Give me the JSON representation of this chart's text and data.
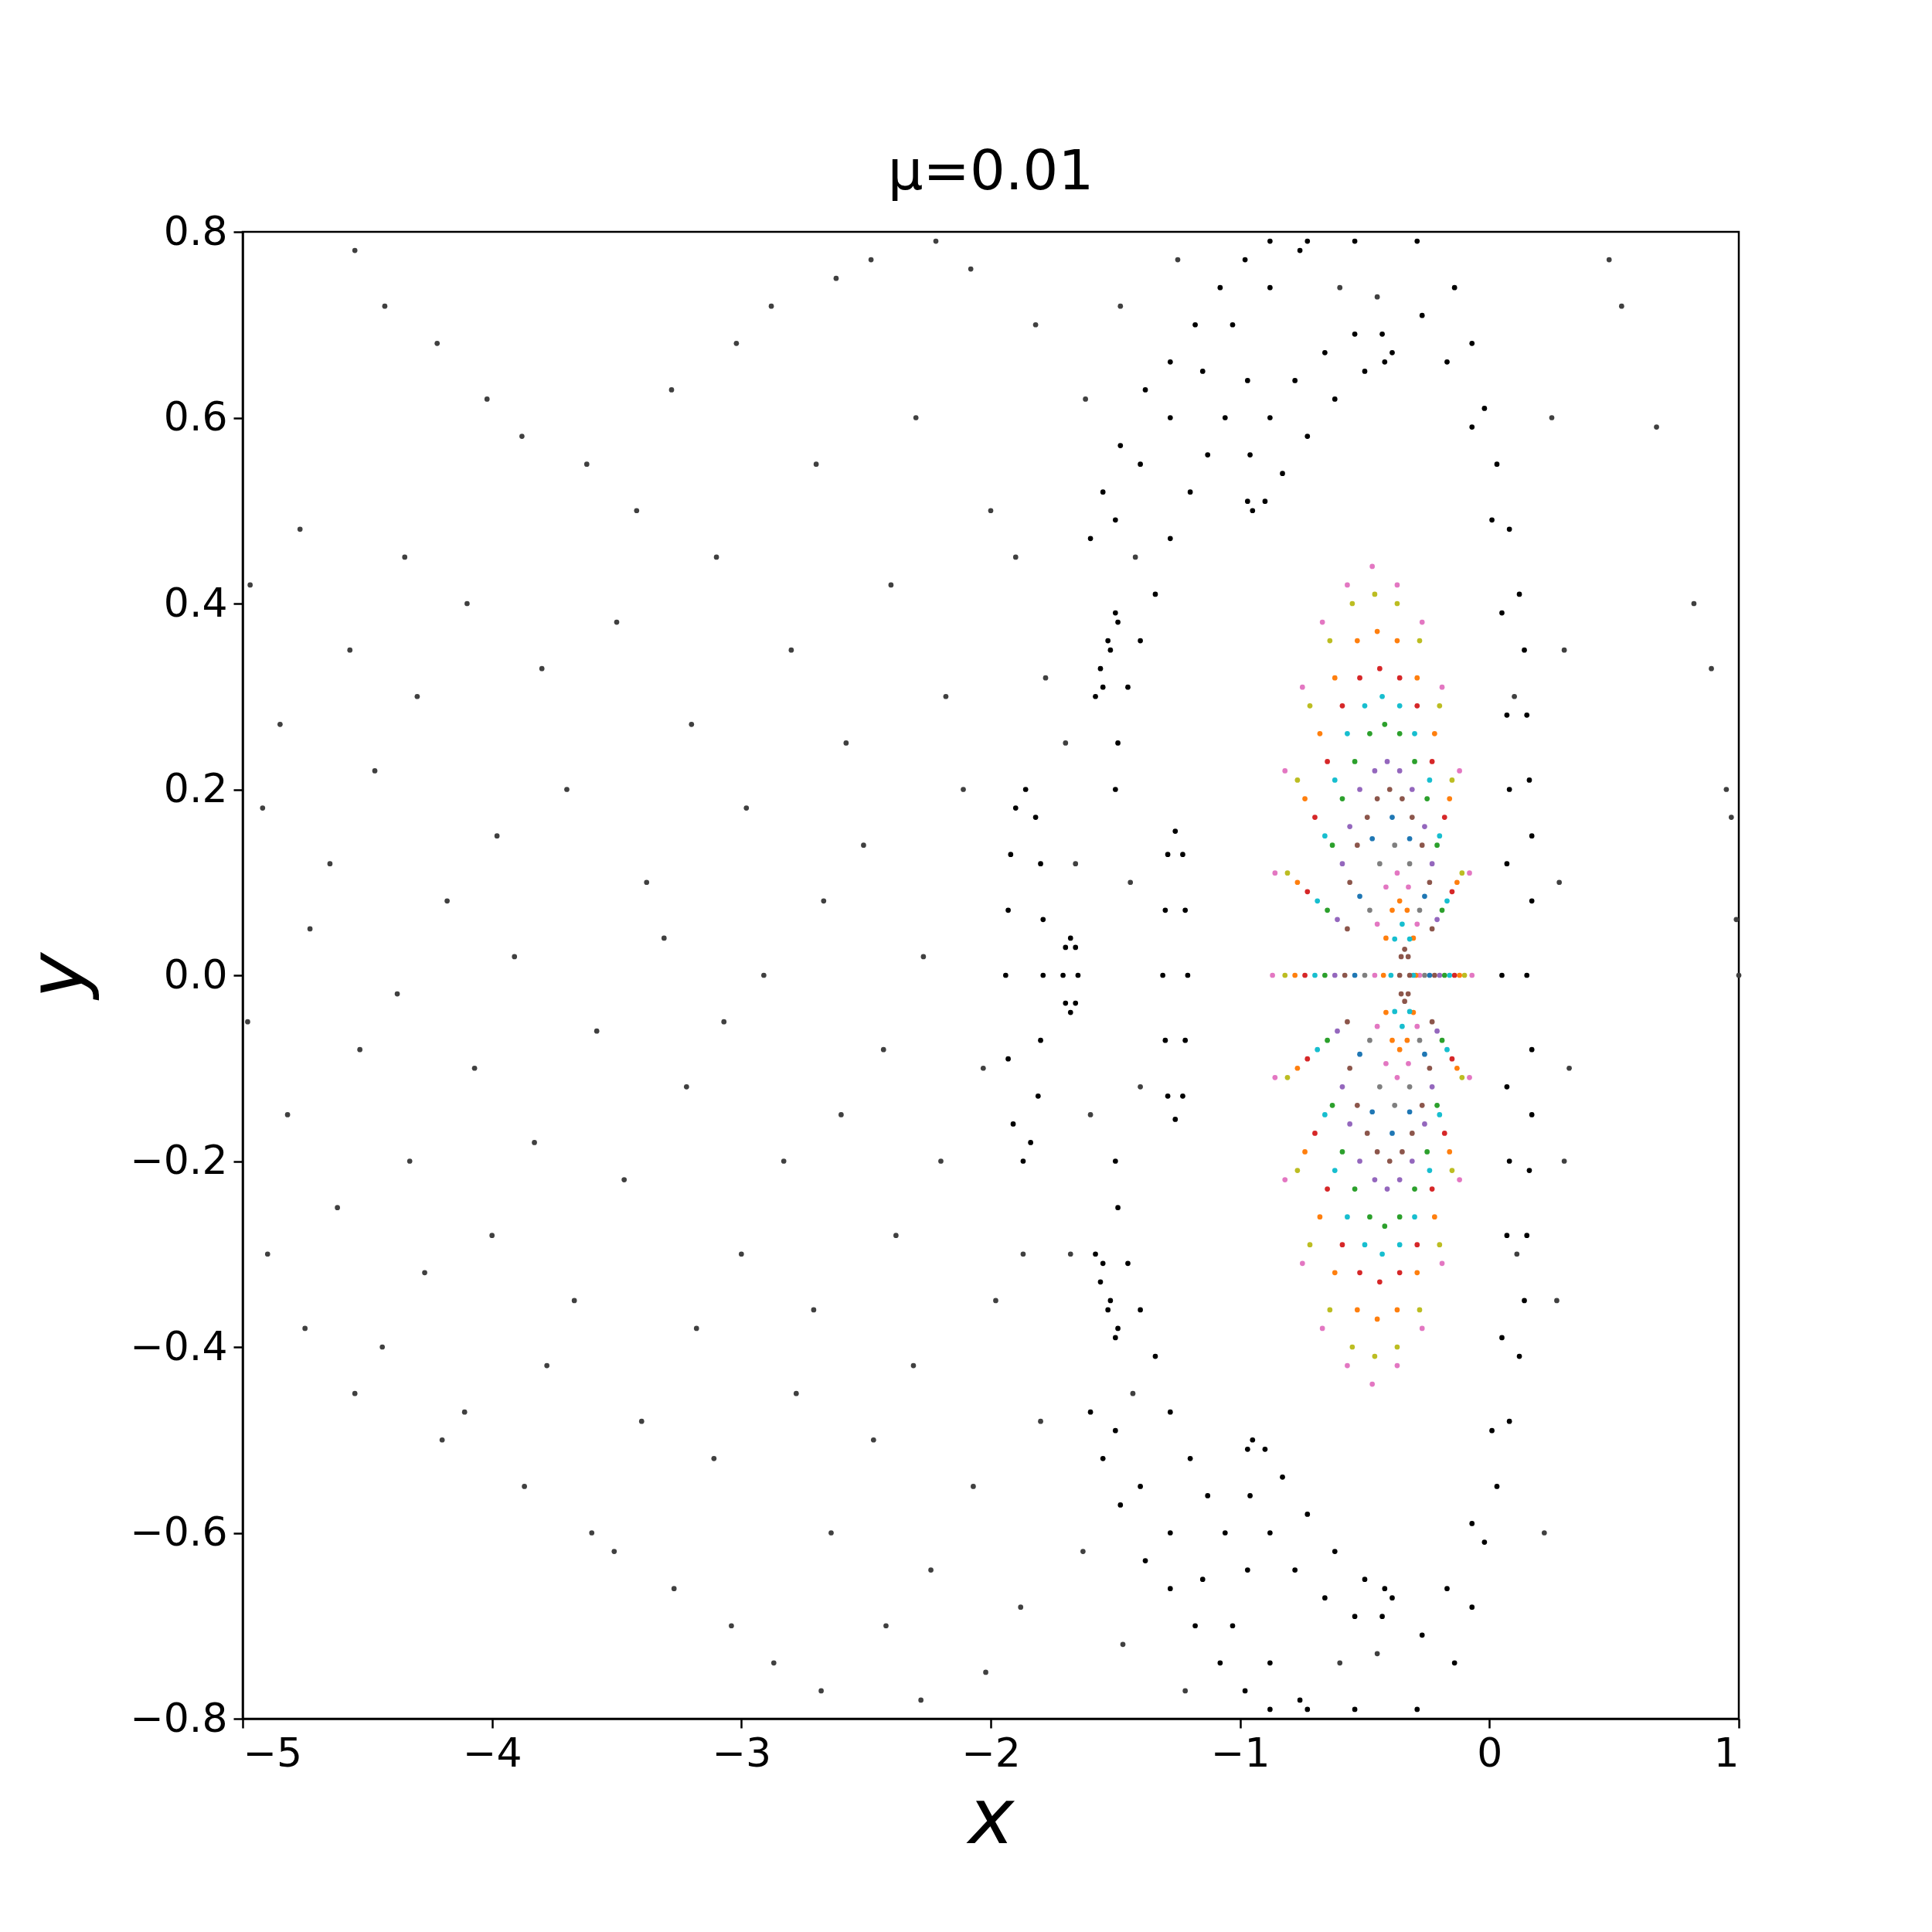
{
  "chart_data": {
    "type": "scatter",
    "title": "μ=0.01",
    "xlabel": "x",
    "ylabel": "y",
    "marker": "circle",
    "xlim": [
      -5,
      1
    ],
    "ylim": [
      -0.8,
      0.8
    ],
    "xticks": [
      {
        "value": -5,
        "label": "−5"
      },
      {
        "value": -4,
        "label": "−4"
      },
      {
        "value": -3,
        "label": "−3"
      },
      {
        "value": -2,
        "label": "−2"
      },
      {
        "value": -1,
        "label": "−1"
      },
      0,
      1
    ],
    "yticks": [
      {
        "value": -0.8,
        "label": "−0.8"
      },
      {
        "value": -0.6,
        "label": "−0.6"
      },
      {
        "value": -0.4,
        "label": "−0.4"
      },
      {
        "value": -0.2,
        "label": "−0.2"
      },
      {
        "value": 0,
        "label": "0.0"
      },
      0.2,
      0.4,
      0.6,
      0.8
    ],
    "series": [
      {
        "color": "#404040",
        "x": [
          -4.97,
          -4.92,
          -4.98,
          -4.9,
          -4.77,
          -4.85,
          -4.73,
          -4.82,
          -4.75,
          -4.57,
          -4.65,
          -4.53,
          -4.62,
          -4.55,
          -4.55,
          -4.43,
          -4.35,
          -4.47,
          -4.38,
          -4.33,
          -4.44,
          -4.22,
          -4.3,
          -4.18,
          -4.27,
          -4.2,
          -4.02,
          -4.1,
          -3.98,
          -4.07,
          -4.0,
          -4.11,
          -3.88,
          -3.8,
          -3.91,
          -3.83,
          -3.78,
          -3.87,
          -3.62,
          -3.7,
          -3.58,
          -3.67,
          -3.6,
          -3.42,
          -3.5,
          -3.38,
          -3.47,
          -3.4,
          -3.51,
          -3.28,
          -3.2,
          -3.31,
          -3.22,
          -3.18,
          -3.27,
          -3.02,
          -3.1,
          -2.98,
          -3.07,
          -3.0,
          -3.11,
          -3.04,
          -2.88,
          -2.8,
          -2.91,
          -2.83,
          -2.78,
          -2.87,
          -2.62,
          -2.7,
          -2.58,
          -2.67,
          -2.6,
          -2.71,
          -2.64,
          -2.68,
          -2.48,
          -2.4,
          -2.51,
          -2.43,
          -2.38,
          -2.47,
          -2.42,
          -2.22,
          -2.3,
          -2.18,
          -2.27,
          -2.2,
          -2.31,
          -2.24,
          -2.28,
          -2.08,
          -2.0,
          -2.11,
          -2.03,
          -1.98,
          -2.07,
          -2.02,
          -1.82,
          -1.9,
          -1.78,
          -1.87,
          -1.8,
          -1.88,
          -1.62,
          -1.7,
          -1.66,
          -1.6,
          -1.68,
          -1.63,
          -1.48,
          -1.42,
          -1.44,
          -1.4,
          -1.43,
          -1.47,
          -1.25,
          -1.22,
          -0.6,
          -0.6,
          -0.45,
          -0.45,
          0.1,
          0.11,
          0.25,
          0.3,
          0.28,
          0.32,
          0.3,
          0.27,
          0.22,
          0.48,
          0.53,
          0.67,
          0.82,
          0.89,
          0.95,
          0.97,
          0.99,
          1.0
        ],
        "values": [
          0.42,
          0.18,
          -0.05,
          -0.3,
          0.48,
          0.27,
          0.05,
          -0.15,
          -0.38,
          0.35,
          0.12,
          -0.08,
          -0.25,
          -0.45,
          0.78,
          0.72,
          0.45,
          0.22,
          -0.02,
          -0.2,
          -0.4,
          0.68,
          0.3,
          0.08,
          -0.32,
          -0.5,
          0.62,
          0.4,
          0.15,
          -0.1,
          -0.28,
          -0.47,
          0.58,
          0.33,
          0.02,
          -0.18,
          -0.42,
          -0.55,
          0.55,
          0.2,
          -0.06,
          -0.35,
          -0.6,
          0.5,
          0.38,
          0.1,
          -0.22,
          -0.48,
          -0.62,
          0.63,
          0.27,
          0.04,
          -0.12,
          -0.38,
          -0.66,
          0.68,
          0.45,
          0.18,
          -0.05,
          -0.3,
          -0.52,
          -0.7,
          0.72,
          0.35,
          0.0,
          -0.2,
          -0.45,
          -0.74,
          0.75,
          0.55,
          0.25,
          0.08,
          -0.15,
          -0.36,
          -0.6,
          -0.77,
          0.77,
          0.42,
          0.14,
          -0.08,
          -0.28,
          -0.5,
          -0.7,
          0.79,
          0.6,
          0.3,
          0.02,
          -0.2,
          -0.42,
          -0.64,
          -0.78,
          0.76,
          0.5,
          0.2,
          -0.1,
          -0.35,
          -0.55,
          -0.75,
          0.7,
          0.45,
          0.32,
          -0.3,
          -0.48,
          -0.68,
          0.62,
          0.25,
          0.12,
          -0.15,
          -0.3,
          -0.62,
          0.72,
          0.45,
          0.1,
          -0.12,
          -0.45,
          -0.72,
          0.77,
          -0.77,
          0.74,
          -0.74,
          0.73,
          -0.73,
          0.3,
          -0.3,
          0.6,
          0.35,
          0.1,
          -0.1,
          -0.2,
          -0.35,
          -0.6,
          0.77,
          0.72,
          0.59,
          0.4,
          0.33,
          0.2,
          0.17,
          0.06,
          0.0
        ]
      },
      {
        "color": "#000000",
        "x": [
          -1.6,
          -1.55,
          -1.48,
          -1.38,
          -1.28,
          -1.18,
          -1.08,
          -0.98,
          -0.88,
          -1.5,
          -1.4,
          -1.28,
          -1.15,
          -1.03,
          -0.88,
          -0.76
        ],
        "values": [
          0.47,
          0.52,
          0.57,
          0.63,
          0.66,
          0.7,
          0.74,
          0.77,
          0.79,
          0.49,
          0.55,
          0.6,
          0.65,
          0.7,
          0.74,
          0.78
        ]
      },
      {
        "color": "#000000",
        "x": [
          -0.73,
          -0.54,
          -0.29,
          -0.14,
          -0.07,
          -0.02,
          0.03,
          0.08,
          0.12,
          0.14,
          0.15,
          0.16,
          0.17,
          0.17,
          0.15,
          0.17,
          0.17,
          0.16,
          0.15,
          0.14,
          0.12,
          0.08,
          0.03,
          -0.02,
          -0.07,
          -0.14,
          -0.29,
          -0.54,
          -0.73
        ],
        "values": [
          0.79,
          0.79,
          0.79,
          0.74,
          0.68,
          0.61,
          0.55,
          0.48,
          0.41,
          0.35,
          0.28,
          0.21,
          0.15,
          0.08,
          0.0,
          -0.08,
          -0.15,
          -0.21,
          -0.28,
          -0.35,
          -0.41,
          -0.48,
          -0.55,
          -0.61,
          -0.68,
          -0.74,
          -0.79,
          -0.79,
          -0.79
        ]
      },
      {
        "color": "#000000",
        "x": [
          -1.6,
          -1.55,
          -1.48,
          -1.38,
          -1.28,
          -1.18,
          -1.08,
          -0.98,
          -0.88,
          -1.5,
          -1.4,
          -1.28,
          -1.15,
          -1.03,
          -0.88,
          -0.76
        ],
        "values": [
          -0.47,
          -0.52,
          -0.57,
          -0.63,
          -0.66,
          -0.7,
          -0.74,
          -0.77,
          -0.79,
          -0.49,
          -0.55,
          -0.6,
          -0.65,
          -0.7,
          -0.74,
          -0.78
        ]
      },
      {
        "color": "#000000",
        "x": [
          -0.27,
          -0.17,
          -0.07,
          0.01,
          0.05,
          0.07,
          0.08,
          0.07,
          0.05,
          0.07,
          0.08,
          0.07,
          0.05,
          0.01,
          -0.07,
          -0.17,
          -0.27
        ],
        "values": [
          0.71,
          0.66,
          0.59,
          0.49,
          0.39,
          0.28,
          0.2,
          0.12,
          0.0,
          -0.12,
          -0.2,
          -0.28,
          -0.39,
          -0.49,
          -0.59,
          -0.66,
          -0.71
        ]
      },
      {
        "color": "#000000",
        "x": [
          -0.97,
          -1.06,
          -1.13,
          -1.2,
          -1.28,
          -1.34,
          -1.4,
          -1.45,
          -1.49,
          -1.5,
          -1.5,
          -1.49,
          -1.45,
          -1.4,
          -1.34,
          -1.28,
          -1.2,
          -1.13,
          -1.06,
          -0.97
        ],
        "values": [
          0.64,
          0.6,
          0.56,
          0.52,
          0.47,
          0.41,
          0.36,
          0.31,
          0.25,
          0.2,
          -0.2,
          -0.25,
          -0.31,
          -0.36,
          -0.41,
          -0.47,
          -0.52,
          -0.56,
          -0.6,
          -0.64
        ]
      },
      {
        "color": "#000000",
        "x": [
          -0.97,
          -0.96,
          -0.88,
          -0.78,
          -0.66,
          -0.54,
          -0.43,
          -0.39,
          -0.42,
          -0.5,
          -0.62,
          -0.73,
          -0.83,
          -0.9,
          -0.95
        ],
        "values": [
          0.51,
          0.56,
          0.6,
          0.64,
          0.67,
          0.69,
          0.69,
          0.67,
          0.66,
          0.65,
          0.62,
          0.58,
          0.54,
          0.51,
          0.5
        ]
      },
      {
        "color": "#000000",
        "x": [
          -0.97,
          -0.96,
          -0.88,
          -0.78,
          -0.66,
          -0.54,
          -0.43,
          -0.39,
          -0.42,
          -0.5,
          -0.62,
          -0.73,
          -0.83,
          -0.9,
          -0.95
        ],
        "values": [
          -0.51,
          -0.56,
          -0.6,
          -0.64,
          -0.67,
          -0.69,
          -0.69,
          -0.67,
          -0.66,
          -0.65,
          -0.62,
          -0.58,
          -0.54,
          -0.51,
          -0.5
        ]
      },
      {
        "color": "#000000",
        "x": [
          -1.86,
          -1.82,
          -1.8,
          -1.79,
          -1.79,
          -1.8,
          -1.81,
          -1.84,
          -1.87,
          -1.91,
          -1.93,
          -1.94,
          -1.93,
          -1.92,
          -1.9
        ],
        "values": [
          0.2,
          0.17,
          0.12,
          0.06,
          0.0,
          -0.07,
          -0.13,
          -0.18,
          -0.2,
          -0.16,
          -0.09,
          0.0,
          0.07,
          0.13,
          0.18
        ]
      },
      {
        "color": "#000000",
        "x": [
          -1.68,
          -1.66,
          -1.65,
          -1.66,
          -1.68,
          -1.7,
          -1.71,
          -1.7
        ],
        "values": [
          0.04,
          0.03,
          0.0,
          -0.03,
          -0.04,
          -0.03,
          0.0,
          0.03
        ]
      },
      {
        "color": "#000000",
        "x": [
          -1.26,
          -1.23,
          -1.22,
          -1.21,
          -1.22,
          -1.23,
          -1.26,
          -1.29,
          -1.3,
          -1.31,
          -1.3,
          -1.29
        ],
        "values": [
          0.155,
          0.13,
          0.07,
          0.0,
          -0.07,
          -0.13,
          -0.155,
          -0.13,
          -0.07,
          0.0,
          0.07,
          0.13
        ]
      },
      {
        "color": "#000000",
        "x": [
          -1.5,
          -1.53,
          -1.56,
          -1.58,
          -1.55,
          -1.52,
          -1.49,
          -1.5,
          -1.53,
          -1.56,
          -1.58,
          -1.55,
          -1.52,
          -1.49
        ],
        "values": [
          0.39,
          0.36,
          0.33,
          0.3,
          0.31,
          0.35,
          0.38,
          -0.39,
          -0.36,
          -0.33,
          -0.3,
          -0.31,
          -0.35,
          -0.38
        ]
      },
      {
        "color": "#e377c2",
        "x": [
          -0.07,
          -0.08,
          -0.12,
          -0.19,
          -0.27,
          -0.37,
          -0.47,
          -0.57,
          -0.67,
          -0.75,
          -0.82,
          -0.86,
          -0.87,
          -0.86,
          -0.82,
          -0.75,
          -0.67,
          -0.57,
          -0.47,
          -0.37,
          -0.27,
          -0.19,
          -0.12,
          -0.08
        ],
        "values": [
          0,
          0.11,
          0.22,
          0.31,
          0.38,
          0.42,
          0.44,
          0.42,
          0.38,
          0.31,
          0.22,
          0.11,
          0,
          -0.11,
          -0.22,
          -0.31,
          -0.38,
          -0.42,
          -0.44,
          -0.42,
          -0.38,
          -0.31,
          -0.22,
          -0.11
        ]
      },
      {
        "color": "#bcbd22",
        "x": [
          -0.1,
          -0.11,
          -0.15,
          -0.2,
          -0.28,
          -0.37,
          -0.46,
          -0.55,
          -0.64,
          -0.72,
          -0.77,
          -0.81,
          -0.82,
          -0.81,
          -0.77,
          -0.72,
          -0.64,
          -0.55,
          -0.46,
          -0.37,
          -0.28,
          -0.2,
          -0.15,
          -0.11
        ],
        "values": [
          0,
          0.11,
          0.21,
          0.29,
          0.36,
          0.4,
          0.41,
          0.4,
          0.36,
          0.29,
          0.21,
          0.11,
          0,
          -0.11,
          -0.21,
          -0.29,
          -0.36,
          -0.4,
          -0.41,
          -0.4,
          -0.36,
          -0.29,
          -0.21,
          -0.11
        ]
      },
      {
        "color": "#ff7f0e",
        "x": [
          -0.12,
          -0.13,
          -0.16,
          -0.22,
          -0.29,
          -0.37,
          -0.45,
          -0.53,
          -0.62,
          -0.68,
          -0.74,
          -0.77,
          -0.78,
          -0.77,
          -0.74,
          -0.68,
          -0.62,
          -0.53,
          -0.45,
          -0.37,
          -0.29,
          -0.22,
          -0.16,
          -0.13
        ],
        "values": [
          0,
          0.1,
          0.19,
          0.26,
          0.32,
          0.36,
          0.37,
          0.36,
          0.32,
          0.26,
          0.19,
          0.1,
          0,
          -0.1,
          -0.19,
          -0.26,
          -0.32,
          -0.36,
          -0.37,
          -0.36,
          -0.32,
          -0.26,
          -0.19,
          -0.1
        ]
      },
      {
        "color": "#d62728",
        "x": [
          -0.14,
          -0.15,
          -0.18,
          -0.23,
          -0.29,
          -0.36,
          -0.44,
          -0.52,
          -0.59,
          -0.65,
          -0.7,
          -0.73,
          -0.74,
          -0.73,
          -0.7,
          -0.65,
          -0.59,
          -0.52,
          -0.44,
          -0.36,
          -0.29,
          -0.23,
          -0.18,
          -0.15
        ],
        "values": [
          0,
          0.09,
          0.17,
          0.23,
          0.29,
          0.32,
          0.33,
          0.32,
          0.29,
          0.23,
          0.17,
          0.09,
          0,
          -0.09,
          -0.17,
          -0.23,
          -0.29,
          -0.32,
          -0.33,
          -0.32,
          -0.29,
          -0.23,
          -0.17,
          -0.09
        ]
      },
      {
        "color": "#17becf",
        "x": [
          -0.16,
          -0.17,
          -0.2,
          -0.24,
          -0.3,
          -0.36,
          -0.43,
          -0.5,
          -0.57,
          -0.62,
          -0.66,
          -0.69,
          -0.7,
          -0.69,
          -0.66,
          -0.62,
          -0.57,
          -0.5,
          -0.43,
          -0.36,
          -0.3,
          -0.24,
          -0.2,
          -0.17
        ],
        "values": [
          0,
          0.08,
          0.15,
          0.21,
          0.26,
          0.29,
          0.3,
          0.29,
          0.26,
          0.21,
          0.15,
          0.08,
          0,
          -0.08,
          -0.15,
          -0.21,
          -0.26,
          -0.29,
          -0.3,
          -0.29,
          -0.26,
          -0.21,
          -0.15,
          -0.08
        ]
      },
      {
        "color": "#2ca02c",
        "x": [
          -0.18,
          -0.19,
          -0.21,
          -0.25,
          -0.3,
          -0.36,
          -0.42,
          -0.48,
          -0.54,
          -0.59,
          -0.63,
          -0.65,
          -0.66,
          -0.65,
          -0.63,
          -0.59,
          -0.54,
          -0.48,
          -0.42,
          -0.36,
          -0.3,
          -0.25,
          -0.21,
          -0.19
        ],
        "values": [
          0,
          0.07,
          0.14,
          0.19,
          0.23,
          0.26,
          0.27,
          0.26,
          0.23,
          0.19,
          0.14,
          0.07,
          0,
          -0.07,
          -0.14,
          -0.19,
          -0.23,
          -0.26,
          -0.27,
          -0.26,
          -0.23,
          -0.19,
          -0.14,
          -0.07
        ]
      },
      {
        "color": "#9467bd",
        "x": [
          -0.2,
          -0.21,
          -0.23,
          -0.26,
          -0.31,
          -0.36,
          -0.41,
          -0.46,
          -0.52,
          -0.56,
          -0.59,
          -0.61,
          -0.62,
          -0.61,
          -0.59,
          -0.56,
          -0.52,
          -0.46,
          -0.41,
          -0.36,
          -0.31,
          -0.26,
          -0.23,
          -0.21
        ],
        "values": [
          0,
          0.06,
          0.12,
          0.16,
          0.2,
          0.22,
          0.23,
          0.22,
          0.2,
          0.16,
          0.12,
          0.06,
          0,
          -0.06,
          -0.12,
          -0.16,
          -0.2,
          -0.22,
          -0.23,
          -0.22,
          -0.2,
          -0.16,
          -0.12,
          -0.06
        ]
      },
      {
        "color": "#8c564b",
        "x": [
          -0.22,
          -0.23,
          -0.24,
          -0.27,
          -0.31,
          -0.35,
          -0.4,
          -0.45,
          -0.49,
          -0.53,
          -0.56,
          -0.57,
          -0.58,
          -0.57,
          -0.56,
          -0.53,
          -0.49,
          -0.45,
          -0.4,
          -0.35,
          -0.31,
          -0.27,
          -0.24,
          -0.23
        ],
        "values": [
          0,
          0.05,
          0.1,
          0.14,
          0.17,
          0.19,
          0.2,
          0.19,
          0.17,
          0.14,
          0.1,
          0.05,
          0,
          -0.05,
          -0.1,
          -0.14,
          -0.17,
          -0.19,
          -0.2,
          -0.19,
          -0.17,
          -0.14,
          -0.1,
          -0.05
        ]
      },
      {
        "color": "#1f77b4",
        "x": [
          -0.24,
          -0.26,
          -0.32,
          -0.39,
          -0.47,
          -0.52,
          -0.54,
          -0.52,
          -0.47,
          -0.39,
          -0.32,
          -0.26
        ],
        "values": [
          0,
          0.085,
          0.147,
          0.17,
          0.147,
          0.085,
          0,
          -0.085,
          -0.147,
          -0.17,
          -0.147,
          -0.085
        ]
      },
      {
        "color": "#7f7f7f",
        "x": [
          -0.26,
          -0.28,
          -0.32,
          -0.38,
          -0.44,
          -0.48,
          -0.5,
          -0.48,
          -0.44,
          -0.38,
          -0.32,
          -0.28
        ],
        "values": [
          0,
          0.07,
          0.12,
          0.14,
          0.12,
          0.07,
          0,
          -0.07,
          -0.12,
          -0.14,
          -0.12,
          -0.07
        ]
      },
      {
        "color": "#e377c2",
        "x": [
          -0.28,
          -0.29,
          -0.325,
          -0.37,
          -0.415,
          -0.45,
          -0.46,
          -0.45,
          -0.415,
          -0.37,
          -0.325,
          -0.29
        ],
        "values": [
          0,
          0.055,
          0.095,
          0.11,
          0.095,
          0.055,
          0,
          -0.055,
          -0.095,
          -0.11,
          -0.095,
          -0.055
        ]
      },
      {
        "color": "#ff7f0e",
        "x": [
          -0.295,
          -0.305,
          -0.33,
          -0.36,
          -0.39,
          -0.415,
          -0.425,
          -0.415,
          -0.39,
          -0.36,
          -0.33,
          -0.305
        ],
        "values": [
          0,
          0.04,
          0.07,
          0.08,
          0.07,
          0.04,
          0,
          -0.04,
          -0.07,
          -0.08,
          -0.07,
          -0.04
        ]
      },
      {
        "color": "#17becf",
        "x": [
          -0.305,
          -0.32,
          -0.35,
          -0.38,
          -0.395,
          -0.38,
          -0.35,
          -0.32
        ],
        "values": [
          0,
          0.039,
          0.055,
          0.039,
          0,
          -0.039,
          -0.055,
          -0.039
        ]
      },
      {
        "color": "#8c564b",
        "x": [
          -0.32,
          -0.326,
          -0.34,
          -0.354,
          -0.36,
          -0.354,
          -0.34,
          -0.326
        ],
        "values": [
          0,
          0.02,
          0.028,
          0.02,
          0,
          -0.02,
          -0.028,
          -0.02
        ]
      }
    ]
  }
}
